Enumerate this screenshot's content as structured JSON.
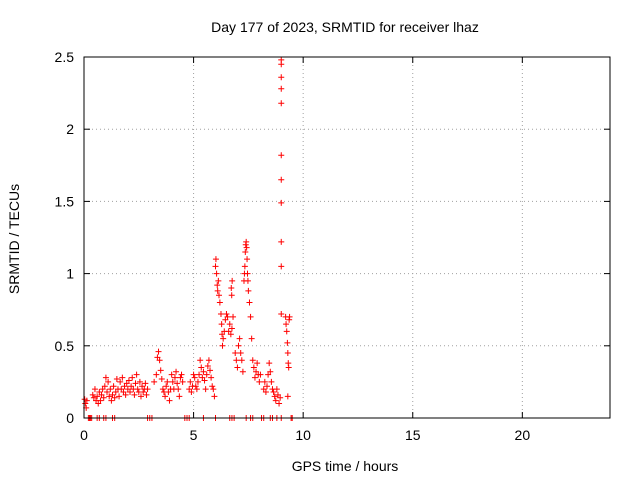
{
  "chart_data": {
    "type": "scatter",
    "title": "Day 177 of 2023, SRMTID for receiver lhaz",
    "xlabel": "GPS time / hours",
    "ylabel": "SRMTID / TECUs",
    "xlim": [
      0,
      24
    ],
    "ylim": [
      0,
      2.5
    ],
    "xticks": [
      0,
      5,
      10,
      15,
      20
    ],
    "yticks": [
      0,
      0.5,
      1,
      1.5,
      2,
      2.5
    ],
    "xtick_labels": [
      "0",
      "5",
      "10",
      "15",
      "20"
    ],
    "ytick_labels": [
      "0",
      "0.5",
      "1",
      "1.5",
      "2",
      "2.5"
    ],
    "grid": true,
    "marker": "+",
    "color": "#ff0000",
    "series": [
      {
        "name": "SRMTID",
        "points": [
          [
            0.03,
            0.13
          ],
          [
            0.06,
            0.1
          ],
          [
            0.1,
            0.07
          ],
          [
            0.13,
            0.12
          ],
          [
            0.2,
            0.0
          ],
          [
            0.25,
            0.0
          ],
          [
            0.3,
            0.0
          ],
          [
            0.35,
            0.0
          ],
          [
            0.4,
            0.16
          ],
          [
            0.45,
            0.14
          ],
          [
            0.5,
            0.2
          ],
          [
            0.55,
            0.12
          ],
          [
            0.6,
            0.15
          ],
          [
            0.65,
            0.1
          ],
          [
            0.7,
            0.18
          ],
          [
            0.75,
            0.12
          ],
          [
            0.8,
            0.16
          ],
          [
            0.85,
            0.2
          ],
          [
            0.9,
            0.14
          ],
          [
            0.95,
            0.22
          ],
          [
            1.0,
            0.28
          ],
          [
            1.05,
            0.18
          ],
          [
            1.1,
            0.25
          ],
          [
            1.15,
            0.15
          ],
          [
            1.2,
            0.2
          ],
          [
            1.25,
            0.12
          ],
          [
            1.3,
            0.16
          ],
          [
            1.35,
            0.22
          ],
          [
            1.4,
            0.14
          ],
          [
            1.45,
            0.18
          ],
          [
            1.5,
            0.27
          ],
          [
            1.55,
            0.2
          ],
          [
            1.6,
            0.15
          ],
          [
            1.65,
            0.25
          ],
          [
            1.7,
            0.2
          ],
          [
            1.75,
            0.28
          ],
          [
            1.8,
            0.18
          ],
          [
            1.85,
            0.22
          ],
          [
            1.9,
            0.16
          ],
          [
            1.95,
            0.24
          ],
          [
            2.0,
            0.2
          ],
          [
            2.05,
            0.26
          ],
          [
            2.1,
            0.18
          ],
          [
            2.15,
            0.22
          ],
          [
            2.2,
            0.28
          ],
          [
            2.25,
            0.2
          ],
          [
            2.3,
            0.16
          ],
          [
            2.35,
            0.24
          ],
          [
            2.4,
            0.3
          ],
          [
            2.45,
            0.2
          ],
          [
            2.5,
            0.18
          ],
          [
            2.55,
            0.25
          ],
          [
            2.6,
            0.15
          ],
          [
            2.65,
            0.22
          ],
          [
            2.7,
            0.18
          ],
          [
            2.75,
            0.2
          ],
          [
            2.8,
            0.24
          ],
          [
            2.85,
            0.16
          ],
          [
            2.9,
            0.2
          ],
          [
            0.6,
            0.0
          ],
          [
            0.7,
            0.0
          ],
          [
            0.9,
            0.0
          ],
          [
            1.0,
            0.0
          ],
          [
            1.3,
            0.0
          ],
          [
            1.4,
            0.0
          ],
          [
            2.9,
            0.0
          ],
          [
            3.0,
            0.0
          ],
          [
            3.1,
            0.0
          ],
          [
            3.2,
            0.25
          ],
          [
            3.3,
            0.3
          ],
          [
            3.35,
            0.42
          ],
          [
            3.4,
            0.46
          ],
          [
            3.45,
            0.4
          ],
          [
            3.5,
            0.33
          ],
          [
            3.55,
            0.27
          ],
          [
            3.6,
            0.2
          ],
          [
            3.65,
            0.18
          ],
          [
            3.7,
            0.15
          ],
          [
            3.75,
            0.22
          ],
          [
            3.8,
            0.25
          ],
          [
            3.85,
            0.18
          ],
          [
            3.9,
            0.12
          ],
          [
            3.95,
            0.2
          ],
          [
            4.0,
            0.3
          ],
          [
            4.05,
            0.25
          ],
          [
            4.1,
            0.2
          ],
          [
            4.15,
            0.28
          ],
          [
            4.2,
            0.32
          ],
          [
            4.25,
            0.24
          ],
          [
            4.3,
            0.2
          ],
          [
            4.35,
            0.15
          ],
          [
            4.4,
            0.28
          ],
          [
            4.45,
            0.3
          ],
          [
            4.5,
            0.25
          ],
          [
            4.6,
            0.0
          ],
          [
            4.7,
            0.0
          ],
          [
            4.8,
            0.0
          ],
          [
            4.8,
            0.2
          ],
          [
            4.85,
            0.25
          ],
          [
            4.9,
            0.18
          ],
          [
            4.95,
            0.22
          ],
          [
            5.0,
            0.3
          ],
          [
            5.05,
            0.28
          ],
          [
            5.1,
            0.22
          ],
          [
            5.15,
            0.2
          ],
          [
            5.2,
            0.25
          ],
          [
            5.25,
            0.3
          ],
          [
            5.3,
            0.4
          ],
          [
            5.35,
            0.35
          ],
          [
            5.4,
            0.28
          ],
          [
            5.45,
            0.32
          ],
          [
            5.5,
            0.26
          ],
          [
            5.55,
            0.2
          ],
          [
            5.6,
            0.3
          ],
          [
            5.65,
            0.36
          ],
          [
            5.7,
            0.4
          ],
          [
            5.75,
            0.33
          ],
          [
            5.8,
            0.28
          ],
          [
            5.85,
            0.22
          ],
          [
            5.9,
            0.2
          ],
          [
            5.95,
            0.15
          ],
          [
            5.45,
            0.0
          ],
          [
            6.0,
            0.0
          ],
          [
            6.0,
            1.05
          ],
          [
            6.02,
            1.1
          ],
          [
            6.05,
            1.0
          ],
          [
            6.08,
            0.92
          ],
          [
            6.1,
            0.88
          ],
          [
            6.13,
            0.95
          ],
          [
            6.16,
            0.85
          ],
          [
            6.2,
            0.8
          ],
          [
            6.25,
            0.72
          ],
          [
            6.28,
            0.65
          ],
          [
            6.3,
            0.58
          ],
          [
            6.32,
            0.5
          ],
          [
            6.35,
            0.55
          ],
          [
            6.4,
            0.6
          ],
          [
            6.45,
            0.68
          ],
          [
            6.5,
            0.72
          ],
          [
            6.55,
            0.7
          ],
          [
            6.6,
            0.6
          ],
          [
            6.65,
            0.65
          ],
          [
            6.7,
            0.58
          ],
          [
            6.75,
            0.62
          ],
          [
            6.8,
            0.7
          ],
          [
            6.65,
            0.0
          ],
          [
            6.75,
            0.0
          ],
          [
            6.85,
            0.0
          ],
          [
            6.72,
            0.9
          ],
          [
            6.74,
            0.85
          ],
          [
            6.76,
            0.95
          ],
          [
            6.9,
            0.45
          ],
          [
            6.95,
            0.4
          ],
          [
            7.0,
            0.35
          ],
          [
            7.05,
            0.5
          ],
          [
            7.1,
            0.55
          ],
          [
            7.15,
            0.45
          ],
          [
            7.2,
            0.4
          ],
          [
            7.25,
            0.32
          ],
          [
            7.3,
            0.95
          ],
          [
            7.32,
            1.0
          ],
          [
            7.34,
            1.05
          ],
          [
            7.36,
            1.15
          ],
          [
            7.38,
            1.2
          ],
          [
            7.4,
            1.22
          ],
          [
            7.42,
            1.18
          ],
          [
            7.44,
            1.1
          ],
          [
            7.46,
            1.0
          ],
          [
            7.48,
            0.95
          ],
          [
            7.5,
            0.88
          ],
          [
            7.55,
            0.8
          ],
          [
            7.6,
            0.7
          ],
          [
            7.65,
            0.55
          ],
          [
            7.7,
            0.4
          ],
          [
            7.75,
            0.35
          ],
          [
            7.8,
            0.28
          ],
          [
            7.85,
            0.32
          ],
          [
            7.9,
            0.38
          ],
          [
            7.95,
            0.3
          ],
          [
            8.0,
            0.25
          ],
          [
            8.05,
            0.3
          ],
          [
            7.4,
            0.0
          ],
          [
            7.6,
            0.0
          ],
          [
            7.7,
            0.0
          ],
          [
            8.1,
            0.0
          ],
          [
            8.2,
            0.0
          ],
          [
            8.2,
            0.2
          ],
          [
            8.25,
            0.25
          ],
          [
            8.3,
            0.18
          ],
          [
            8.35,
            0.22
          ],
          [
            8.4,
            0.3
          ],
          [
            8.45,
            0.38
          ],
          [
            8.5,
            0.32
          ],
          [
            8.55,
            0.25
          ],
          [
            8.6,
            0.2
          ],
          [
            8.65,
            0.18
          ],
          [
            8.7,
            0.15
          ],
          [
            8.75,
            0.12
          ],
          [
            8.8,
            0.2
          ],
          [
            8.85,
            0.16
          ],
          [
            8.9,
            0.1
          ],
          [
            8.95,
            0.14
          ],
          [
            8.5,
            0.0
          ],
          [
            8.6,
            0.0
          ],
          [
            8.8,
            0.0
          ],
          [
            9.0,
            0.0
          ],
          [
            9.0,
            2.48
          ],
          [
            9.0,
            2.45
          ],
          [
            9.0,
            2.36
          ],
          [
            9.0,
            2.28
          ],
          [
            9.0,
            2.18
          ],
          [
            9.0,
            1.82
          ],
          [
            9.0,
            1.65
          ],
          [
            9.0,
            1.49
          ],
          [
            9.0,
            1.22
          ],
          [
            9.0,
            1.05
          ],
          [
            9.0,
            0.72
          ],
          [
            9.2,
            0.7
          ],
          [
            9.22,
            0.65
          ],
          [
            9.25,
            0.6
          ],
          [
            9.28,
            0.52
          ],
          [
            9.3,
            0.45
          ],
          [
            9.32,
            0.38
          ],
          [
            9.34,
            0.35
          ],
          [
            9.36,
            0.68
          ],
          [
            9.38,
            0.7
          ],
          [
            9.3,
            0.15
          ],
          [
            9.45,
            0.0
          ],
          [
            9.5,
            0.0
          ]
        ]
      }
    ]
  }
}
